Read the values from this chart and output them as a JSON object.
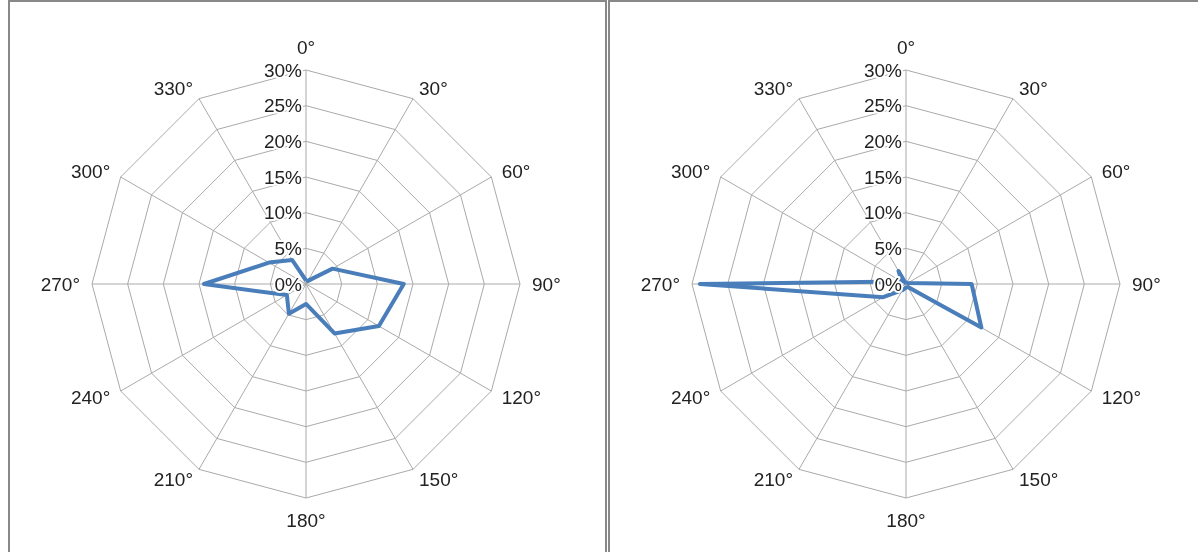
{
  "chart_data": [
    {
      "type": "radar",
      "categories": [
        "0°",
        "30°",
        "60°",
        "90°",
        "120°",
        "150°",
        "180°",
        "210°",
        "240°",
        "270°",
        "300°",
        "330°"
      ],
      "series": [
        {
          "color": "#4a7ebb",
          "values": [
            0.5,
            0.5,
            4.3,
            13.7,
            11.8,
            8,
            2.8,
            4.8,
            3.1,
            14.3,
            6,
            3.9
          ]
        }
      ],
      "ylim": [
        0,
        30
      ],
      "yticks": [
        {
          "value": 0,
          "label": "0%"
        },
        {
          "value": 5,
          "label": "5%"
        },
        {
          "value": 10,
          "label": "10%"
        },
        {
          "value": 15,
          "label": "15%"
        },
        {
          "value": 20,
          "label": "20%"
        },
        {
          "value": 25,
          "label": "25%"
        },
        {
          "value": 30,
          "label": "30%"
        }
      ],
      "grid": true,
      "marker": "none"
    },
    {
      "type": "radar",
      "categories": [
        "0°",
        "30°",
        "60°",
        "90°",
        "120°",
        "150°",
        "180°",
        "210°",
        "240°",
        "270°",
        "300°",
        "330°"
      ],
      "series": [
        {
          "color": "#4a7ebb",
          "values": [
            0,
            0.2,
            0.3,
            9.2,
            12.2,
            0.5,
            0.5,
            1,
            3.7,
            28.9,
            0.7,
            2.1
          ]
        }
      ],
      "ylim": [
        0,
        30
      ],
      "yticks": [
        {
          "value": 0,
          "label": "0%"
        },
        {
          "value": 5,
          "label": "5%"
        },
        {
          "value": 10,
          "label": "10%"
        },
        {
          "value": 15,
          "label": "15%"
        },
        {
          "value": 20,
          "label": "20%"
        },
        {
          "value": 25,
          "label": "25%"
        },
        {
          "value": 30,
          "label": "30%"
        }
      ],
      "grid": true,
      "marker": "none"
    }
  ]
}
